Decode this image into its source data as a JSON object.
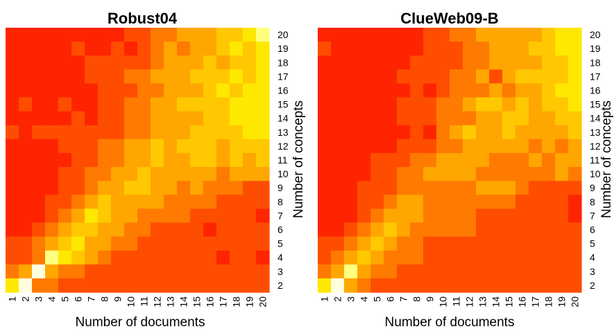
{
  "chart_data": [
    {
      "type": "heatmap",
      "title": "Robust04",
      "xlabel": "Number of documents",
      "ylabel": "Number of concepts",
      "x": [
        1,
        2,
        3,
        4,
        5,
        6,
        7,
        8,
        9,
        10,
        11,
        12,
        13,
        14,
        15,
        16,
        17,
        18,
        19,
        20
      ],
      "y": [
        20,
        19,
        18,
        17,
        16,
        15,
        14,
        13,
        12,
        11,
        10,
        9,
        8,
        7,
        6,
        5,
        4,
        3,
        2
      ],
      "color_scale": "heat (red to yellow to white)",
      "values": [
        [
          0,
          0,
          0,
          0,
          0,
          0,
          0,
          0,
          0,
          1,
          1,
          2,
          2,
          3,
          3,
          3,
          4,
          4,
          5,
          6
        ],
        [
          0,
          0,
          0,
          0,
          0,
          1,
          0,
          0,
          1,
          0,
          1,
          2,
          3,
          2,
          3,
          3,
          4,
          5,
          4,
          5
        ],
        [
          0,
          0,
          0,
          0,
          0,
          0,
          1,
          1,
          1,
          1,
          1,
          2,
          3,
          3,
          3,
          4,
          3,
          4,
          4,
          5
        ],
        [
          0,
          0,
          0,
          0,
          0,
          0,
          1,
          1,
          1,
          2,
          2,
          3,
          3,
          3,
          4,
          4,
          4,
          5,
          4,
          5
        ],
        [
          0,
          0,
          0,
          0,
          0,
          0,
          0,
          1,
          1,
          1,
          2,
          2,
          3,
          3,
          3,
          4,
          5,
          4,
          5,
          5
        ],
        [
          0,
          1,
          0,
          0,
          1,
          0,
          0,
          1,
          1,
          2,
          2,
          3,
          3,
          4,
          4,
          4,
          4,
          5,
          5,
          5
        ],
        [
          0,
          0,
          0,
          0,
          0,
          1,
          0,
          1,
          1,
          2,
          2,
          3,
          3,
          3,
          3,
          4,
          4,
          5,
          5,
          5
        ],
        [
          1,
          0,
          1,
          1,
          1,
          1,
          1,
          1,
          1,
          2,
          2,
          3,
          3,
          3,
          4,
          4,
          4,
          4,
          5,
          5
        ],
        [
          0,
          0,
          0,
          0,
          1,
          1,
          1,
          2,
          2,
          3,
          3,
          4,
          3,
          4,
          4,
          4,
          3,
          4,
          4,
          4
        ],
        [
          0,
          0,
          0,
          0,
          0,
          1,
          1,
          2,
          2,
          3,
          3,
          4,
          3,
          3,
          4,
          4,
          3,
          4,
          3,
          4
        ],
        [
          0,
          0,
          0,
          0,
          1,
          1,
          2,
          2,
          3,
          3,
          4,
          3,
          3,
          3,
          3,
          3,
          2,
          3,
          3,
          3
        ],
        [
          0,
          0,
          0,
          0,
          1,
          1,
          2,
          3,
          3,
          4,
          4,
          3,
          3,
          2,
          3,
          2,
          2,
          2,
          1,
          1
        ],
        [
          0,
          0,
          0,
          1,
          1,
          2,
          3,
          4,
          3,
          3,
          3,
          3,
          2,
          2,
          2,
          2,
          1,
          1,
          1,
          1
        ],
        [
          0,
          0,
          0,
          1,
          2,
          3,
          5,
          4,
          3,
          3,
          2,
          2,
          2,
          2,
          1,
          1,
          1,
          1,
          1,
          0
        ],
        [
          0,
          0,
          1,
          2,
          3,
          4,
          4,
          3,
          3,
          2,
          2,
          1,
          1,
          1,
          1,
          0,
          1,
          1,
          1,
          1
        ],
        [
          1,
          1,
          2,
          3,
          4,
          5,
          3,
          3,
          2,
          2,
          1,
          1,
          1,
          1,
          1,
          1,
          1,
          1,
          1,
          1
        ],
        [
          1,
          1,
          2,
          6,
          5,
          4,
          3,
          2,
          1,
          1,
          1,
          1,
          1,
          1,
          1,
          1,
          0,
          1,
          1,
          0
        ],
        [
          2,
          3,
          7,
          3,
          2,
          2,
          1,
          1,
          1,
          1,
          1,
          1,
          1,
          1,
          1,
          1,
          1,
          1,
          1,
          1
        ],
        [
          5,
          7,
          2,
          2,
          1,
          1,
          1,
          1,
          1,
          1,
          1,
          1,
          1,
          1,
          1,
          1,
          1,
          1,
          1,
          1
        ]
      ]
    },
    {
      "type": "heatmap",
      "title": "ClueWeb09-B",
      "xlabel": "Number of documents",
      "ylabel": "Number of concepts",
      "x": [
        1,
        2,
        3,
        4,
        5,
        6,
        7,
        8,
        9,
        10,
        11,
        12,
        13,
        14,
        15,
        16,
        17,
        18,
        19,
        20
      ],
      "y": [
        20,
        19,
        18,
        17,
        16,
        15,
        14,
        13,
        12,
        11,
        10,
        9,
        8,
        7,
        6,
        5,
        4,
        3,
        2
      ],
      "color_scale": "heat (red to yellow to white)",
      "values": [
        [
          0,
          0,
          0,
          0,
          0,
          0,
          0,
          0,
          1,
          1,
          2,
          2,
          3,
          3,
          3,
          3,
          3,
          4,
          5,
          5
        ],
        [
          1,
          0,
          0,
          0,
          0,
          0,
          0,
          0,
          1,
          1,
          1,
          2,
          2,
          3,
          3,
          3,
          4,
          4,
          5,
          5
        ],
        [
          0,
          0,
          0,
          0,
          0,
          0,
          0,
          1,
          1,
          1,
          1,
          2,
          2,
          3,
          3,
          3,
          3,
          4,
          4,
          5
        ],
        [
          0,
          0,
          0,
          0,
          0,
          0,
          1,
          1,
          1,
          1,
          2,
          2,
          3,
          1,
          3,
          4,
          4,
          4,
          4,
          5
        ],
        [
          0,
          0,
          0,
          0,
          0,
          0,
          0,
          1,
          0,
          1,
          2,
          2,
          2,
          3,
          2,
          3,
          3,
          4,
          5,
          5
        ],
        [
          0,
          0,
          0,
          0,
          0,
          0,
          1,
          1,
          1,
          2,
          2,
          3,
          4,
          4,
          3,
          4,
          3,
          4,
          4,
          5
        ],
        [
          0,
          0,
          0,
          0,
          0,
          0,
          1,
          1,
          1,
          2,
          2,
          2,
          3,
          3,
          4,
          4,
          3,
          3,
          4,
          4
        ],
        [
          0,
          0,
          0,
          0,
          0,
          0,
          0,
          1,
          0,
          2,
          3,
          4,
          3,
          3,
          4,
          3,
          3,
          3,
          3,
          4
        ],
        [
          0,
          0,
          0,
          0,
          0,
          0,
          1,
          1,
          1,
          2,
          2,
          3,
          3,
          3,
          3,
          3,
          2,
          3,
          2,
          3
        ],
        [
          0,
          0,
          0,
          0,
          1,
          1,
          1,
          2,
          2,
          3,
          3,
          3,
          3,
          2,
          2,
          2,
          3,
          2,
          3,
          3
        ],
        [
          0,
          0,
          0,
          0,
          1,
          1,
          2,
          2,
          3,
          3,
          3,
          3,
          2,
          2,
          2,
          2,
          2,
          2,
          3,
          2
        ],
        [
          0,
          0,
          0,
          1,
          1,
          1,
          2,
          2,
          2,
          2,
          2,
          2,
          3,
          3,
          3,
          2,
          1,
          1,
          1,
          1
        ],
        [
          0,
          0,
          0,
          1,
          1,
          2,
          3,
          3,
          2,
          2,
          2,
          2,
          2,
          2,
          2,
          1,
          1,
          1,
          1,
          0
        ],
        [
          0,
          0,
          0,
          1,
          2,
          3,
          3,
          3,
          2,
          2,
          2,
          2,
          1,
          1,
          1,
          1,
          1,
          1,
          1,
          0
        ],
        [
          0,
          0,
          1,
          2,
          3,
          4,
          3,
          2,
          2,
          2,
          2,
          2,
          1,
          1,
          1,
          1,
          1,
          1,
          1,
          1
        ],
        [
          1,
          1,
          2,
          3,
          4,
          3,
          2,
          2,
          1,
          1,
          1,
          1,
          1,
          1,
          1,
          1,
          1,
          1,
          1,
          1
        ],
        [
          1,
          2,
          3,
          4,
          3,
          2,
          2,
          2,
          1,
          1,
          1,
          1,
          1,
          1,
          1,
          1,
          1,
          1,
          1,
          1
        ],
        [
          2,
          3,
          6,
          3,
          2,
          2,
          1,
          1,
          1,
          1,
          1,
          1,
          1,
          1,
          1,
          1,
          1,
          1,
          1,
          1
        ],
        [
          5,
          7,
          3,
          2,
          1,
          1,
          1,
          1,
          1,
          1,
          1,
          1,
          1,
          1,
          1,
          1,
          1,
          1,
          1,
          1
        ]
      ]
    }
  ],
  "palette": [
    "#FF2400",
    "#FF4D00",
    "#FF7A00",
    "#FFA600",
    "#FFC800",
    "#FFE800",
    "#FFFF80",
    "#FFFFDF"
  ]
}
